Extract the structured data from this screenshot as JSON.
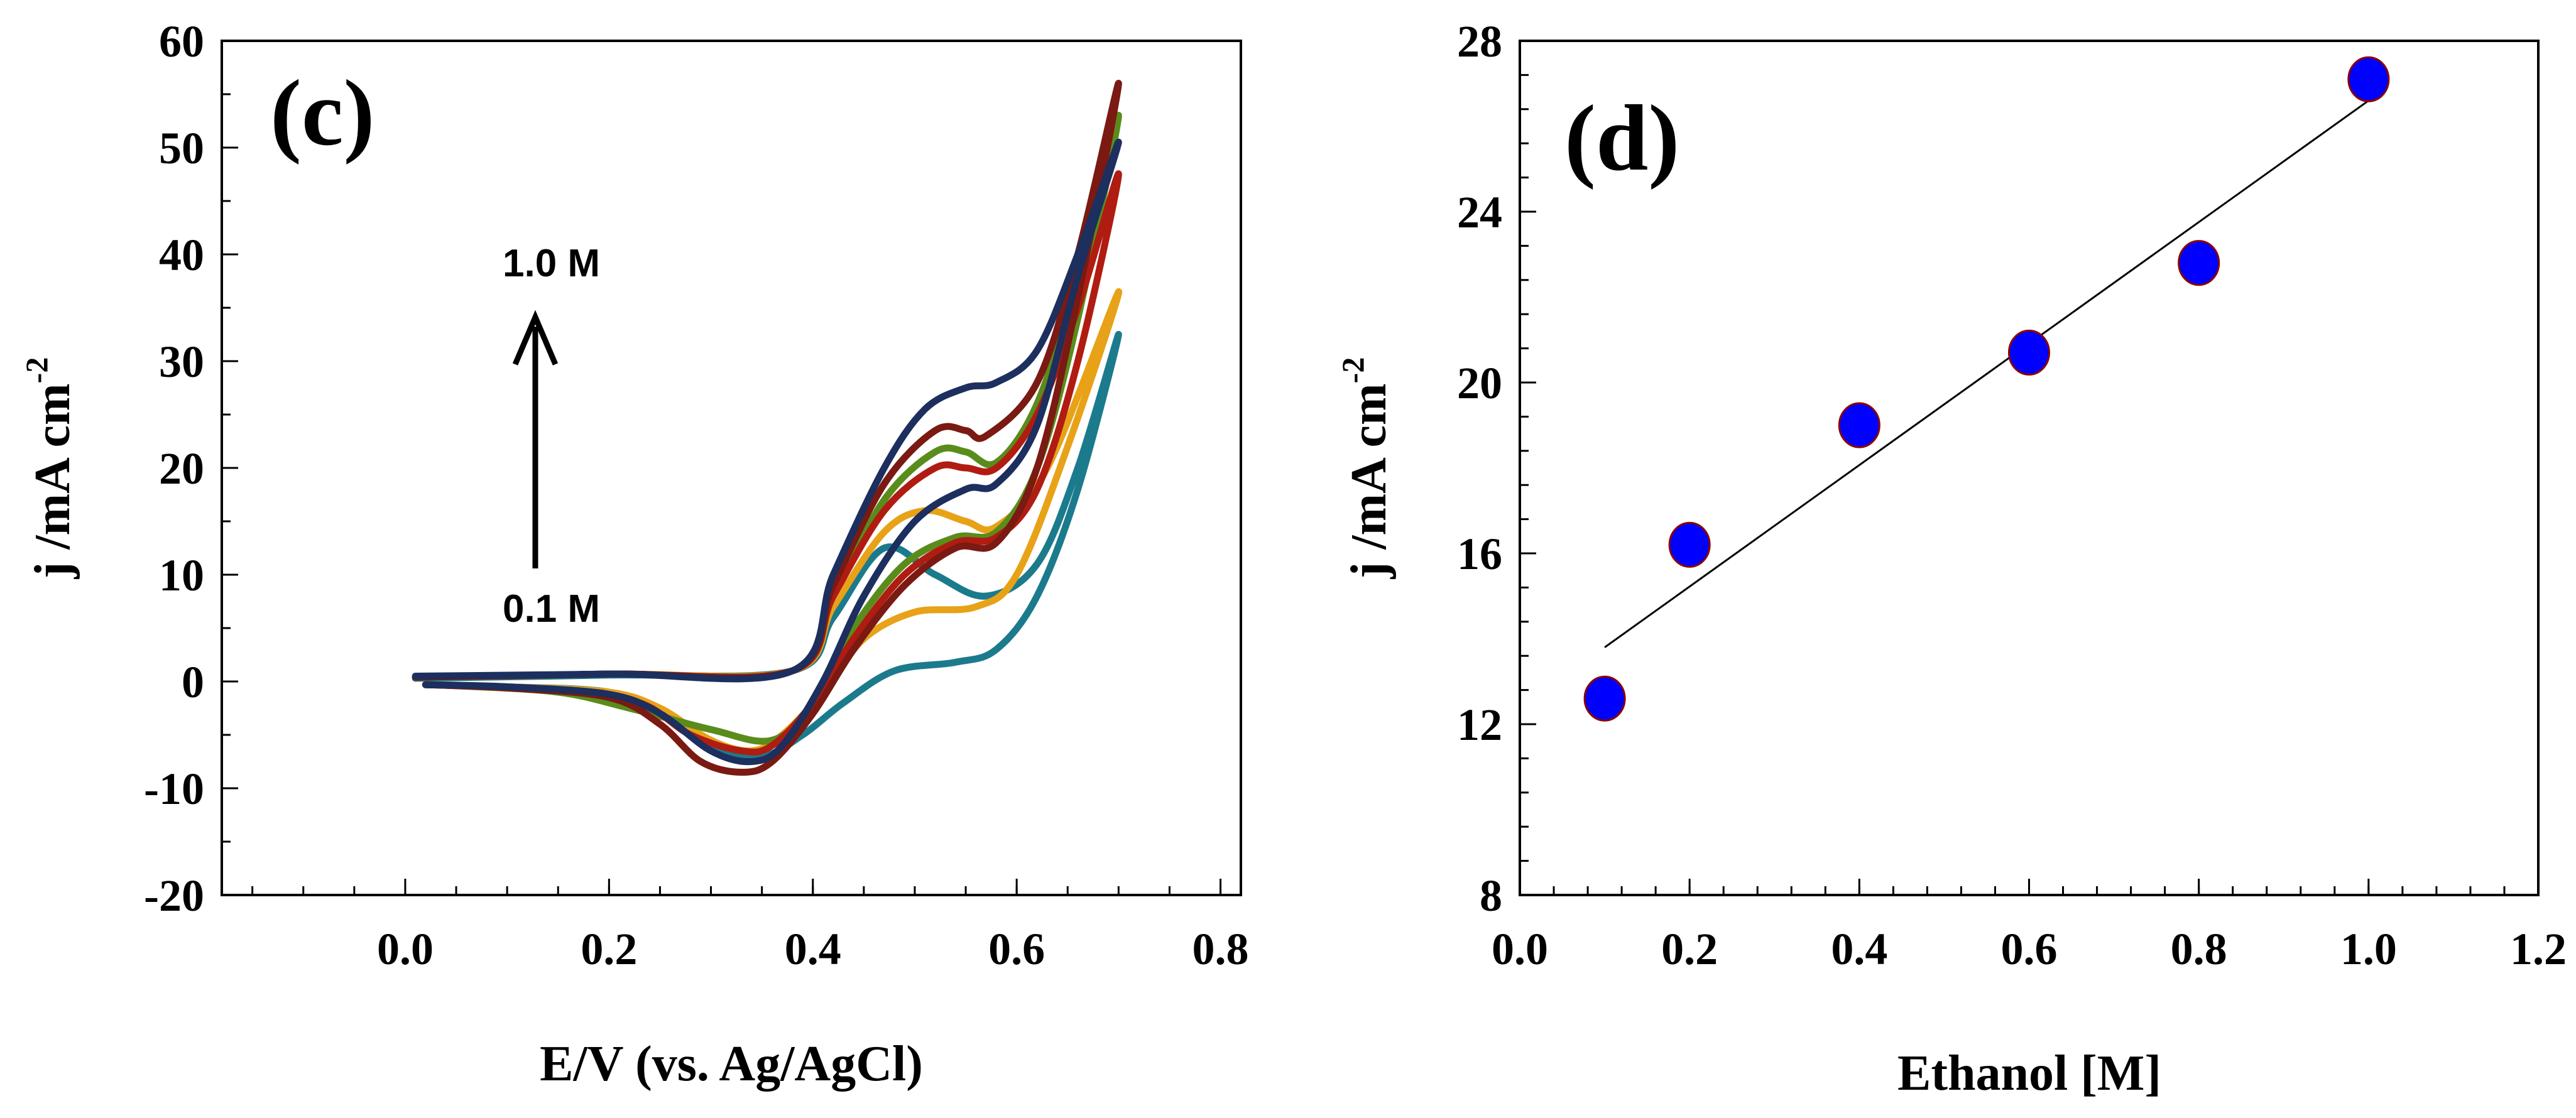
{
  "chart_data": [
    {
      "type": "line",
      "panel_label": "(c)",
      "xlabel": "E/V (vs. Ag/AgCl)",
      "ylabel": "j /mA cm",
      "ylabel_sup": "-2",
      "xlim": [
        -0.18,
        0.82
      ],
      "ylim": [
        -20,
        60
      ],
      "xticks": [
        "0.0",
        "0.2",
        "0.4",
        "0.6",
        "0.8"
      ],
      "yticks": [
        "-20",
        "-10",
        "0",
        "10",
        "20",
        "30",
        "40",
        "50",
        "60"
      ],
      "grid": false,
      "annotations": {
        "top": "1.0 M",
        "bottom": "0.1 M",
        "arrow": "up"
      },
      "series": [
        {
          "color": "#1b7b8c",
          "points": [
            [
              0.01,
              0.3
            ],
            [
              0.2,
              0.6
            ],
            [
              0.38,
              1
            ],
            [
              0.42,
              6
            ],
            [
              0.47,
              12.5
            ],
            [
              0.52,
              10
            ],
            [
              0.57,
              8
            ],
            [
              0.62,
              11
            ],
            [
              0.66,
              20
            ],
            [
              0.7,
              32.5
            ],
            [
              0.66,
              18
            ],
            [
              0.62,
              8
            ],
            [
              0.58,
              3
            ],
            [
              0.54,
              1.8
            ],
            [
              0.48,
              1
            ],
            [
              0.43,
              -2
            ],
            [
              0.39,
              -5
            ],
            [
              0.35,
              -7
            ],
            [
              0.3,
              -6
            ],
            [
              0.25,
              -3
            ],
            [
              0.2,
              -1
            ],
            [
              0.1,
              -0.5
            ],
            [
              0.02,
              -0.3
            ]
          ]
        },
        {
          "color": "#e8a218",
          "points": [
            [
              0.01,
              0.4
            ],
            [
              0.2,
              0.7
            ],
            [
              0.38,
              1
            ],
            [
              0.42,
              7
            ],
            [
              0.47,
              14
            ],
            [
              0.51,
              16
            ],
            [
              0.55,
              15
            ],
            [
              0.58,
              14.5
            ],
            [
              0.63,
              20
            ],
            [
              0.7,
              36.5
            ],
            [
              0.65,
              22
            ],
            [
              0.6,
              10
            ],
            [
              0.56,
              7
            ],
            [
              0.5,
              6.5
            ],
            [
              0.45,
              4
            ],
            [
              0.41,
              -1
            ],
            [
              0.37,
              -5
            ],
            [
              0.34,
              -6.5
            ],
            [
              0.3,
              -5.5
            ],
            [
              0.25,
              -2.5
            ],
            [
              0.2,
              -1
            ],
            [
              0.1,
              -0.5
            ],
            [
              0.02,
              -0.3
            ]
          ]
        },
        {
          "color": "#5a8c1c",
          "points": [
            [
              0.01,
              0.4
            ],
            [
              0.2,
              0.7
            ],
            [
              0.38,
              1
            ],
            [
              0.42,
              8
            ],
            [
              0.47,
              17
            ],
            [
              0.52,
              21.5
            ],
            [
              0.55,
              21.5
            ],
            [
              0.58,
              20.5
            ],
            [
              0.62,
              26
            ],
            [
              0.66,
              38
            ],
            [
              0.7,
              53
            ],
            [
              0.66,
              34
            ],
            [
              0.62,
              20
            ],
            [
              0.58,
              14
            ],
            [
              0.54,
              13.5
            ],
            [
              0.49,
              11
            ],
            [
              0.44,
              5
            ],
            [
              0.4,
              -2
            ],
            [
              0.36,
              -5.5
            ],
            [
              0.3,
              -4.5
            ],
            [
              0.22,
              -2.5
            ],
            [
              0.15,
              -1
            ],
            [
              0.05,
              -0.4
            ],
            [
              0.02,
              -0.3
            ]
          ]
        },
        {
          "color": "#b01c12",
          "points": [
            [
              0.01,
              0.4
            ],
            [
              0.2,
              0.7
            ],
            [
              0.38,
              1
            ],
            [
              0.42,
              8
            ],
            [
              0.47,
              16
            ],
            [
              0.52,
              20
            ],
            [
              0.55,
              20
            ],
            [
              0.58,
              20
            ],
            [
              0.62,
              25
            ],
            [
              0.66,
              35
            ],
            [
              0.7,
              47.5
            ],
            [
              0.66,
              30
            ],
            [
              0.62,
              18
            ],
            [
              0.58,
              13.5
            ],
            [
              0.54,
              13
            ],
            [
              0.49,
              10
            ],
            [
              0.44,
              4
            ],
            [
              0.4,
              -2
            ],
            [
              0.36,
              -6
            ],
            [
              0.33,
              -6.5
            ],
            [
              0.28,
              -5
            ],
            [
              0.23,
              -2
            ],
            [
              0.15,
              -0.8
            ],
            [
              0.05,
              -0.4
            ],
            [
              0.02,
              -0.3
            ]
          ]
        },
        {
          "color": "#7a1a12",
          "points": [
            [
              0.01,
              0.4
            ],
            [
              0.2,
              0.7
            ],
            [
              0.38,
              1
            ],
            [
              0.42,
              9
            ],
            [
              0.47,
              18.5
            ],
            [
              0.52,
              23.5
            ],
            [
              0.55,
              23.5
            ],
            [
              0.57,
              23
            ],
            [
              0.62,
              28
            ],
            [
              0.66,
              40
            ],
            [
              0.7,
              56
            ],
            [
              0.66,
              36
            ],
            [
              0.62,
              20
            ],
            [
              0.58,
              13
            ],
            [
              0.54,
              12.5
            ],
            [
              0.49,
              9
            ],
            [
              0.44,
              3
            ],
            [
              0.4,
              -3
            ],
            [
              0.36,
              -7.5
            ],
            [
              0.33,
              -8.5
            ],
            [
              0.29,
              -7.5
            ],
            [
              0.25,
              -4
            ],
            [
              0.2,
              -1.5
            ],
            [
              0.1,
              -0.6
            ],
            [
              0.02,
              -0.3
            ]
          ]
        },
        {
          "color": "#1c2f5e",
          "points": [
            [
              0.01,
              0.5
            ],
            [
              0.2,
              0.7
            ],
            [
              0.38,
              1
            ],
            [
              0.42,
              10
            ],
            [
              0.47,
              20
            ],
            [
              0.51,
              25.5
            ],
            [
              0.55,
              27.5
            ],
            [
              0.58,
              28
            ],
            [
              0.62,
              31
            ],
            [
              0.66,
              40
            ],
            [
              0.7,
              50.5
            ],
            [
              0.66,
              38
            ],
            [
              0.62,
              24
            ],
            [
              0.58,
              18.5
            ],
            [
              0.55,
              18
            ],
            [
              0.5,
              15
            ],
            [
              0.45,
              8
            ],
            [
              0.41,
              0
            ],
            [
              0.37,
              -6
            ],
            [
              0.34,
              -7.5
            ],
            [
              0.3,
              -6.5
            ],
            [
              0.25,
              -3
            ],
            [
              0.2,
              -1.2
            ],
            [
              0.1,
              -0.5
            ],
            [
              0.02,
              -0.3
            ]
          ]
        }
      ]
    },
    {
      "type": "scatter",
      "panel_label": "(d)",
      "xlabel": "Ethanol [M]",
      "ylabel": "j /mA cm",
      "ylabel_sup": "-2",
      "xlim": [
        0,
        1.2
      ],
      "ylim": [
        8,
        28
      ],
      "xticks": [
        "0.0",
        "0.2",
        "0.4",
        "0.6",
        "0.8",
        "1.0",
        "1.2"
      ],
      "yticks": [
        "8",
        "12",
        "16",
        "20",
        "24",
        "28"
      ],
      "grid": false,
      "marker_color": "#0000ff",
      "marker_edge": "#8b0000",
      "x": [
        0.1,
        0.2,
        0.4,
        0.6,
        0.8,
        1.0
      ],
      "y": [
        12.6,
        16.2,
        19.0,
        20.7,
        22.8,
        27.1
      ],
      "fit_line": [
        [
          0.1,
          13.8
        ],
        [
          1.0,
          26.6
        ]
      ]
    }
  ]
}
